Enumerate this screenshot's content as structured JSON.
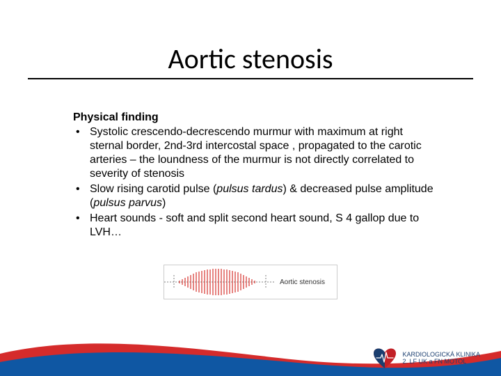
{
  "title": {
    "text": "Aortic stenosis",
    "fontsize": 40,
    "color": "#000000"
  },
  "section_heading": {
    "text": "Physical finding",
    "fontsize": 16
  },
  "bullets": {
    "fontsize": 16,
    "line_height": 1.25,
    "items": [
      {
        "text_html": "Systolic crescendo-decrescendo murmur with maximum at right sternal border, 2nd-3rd intercostal space , propagated to the carotic arteries – the loundness of the murmur is not directly correlated to severity of stenosis"
      },
      {
        "text_html": "Slow rising carotid pulse (<span class='italic'>pulsus tardus</span>) & decreased pulse amplitude (<span class='italic'>pulsus parvus</span>)"
      },
      {
        "text_html": "Heart sounds - soft and split second heart sound, S 4 gallop due to LVH…"
      }
    ]
  },
  "waveform": {
    "label": "Aortic stenosis",
    "axis_color": "#808080",
    "wave_color": "#d4302a",
    "background": "#ffffff",
    "border_color": "#cccccc",
    "envelope_shape": "crescendo-decrescendo",
    "notch_positions": [
      0.08,
      0.92
    ]
  },
  "footer": {
    "wave_back_color": "#d52b2b",
    "wave_front_color": "#0f57a3",
    "logo": {
      "primary_color": "#c22026",
      "secondary_color": "#1a3e6f",
      "line1": "KARDIOLOGICKÁ KLINIKA",
      "line2": "2. LF UK a FN MOTOL",
      "text_color": "#1a3e6f",
      "text_fontsize": 9
    }
  }
}
